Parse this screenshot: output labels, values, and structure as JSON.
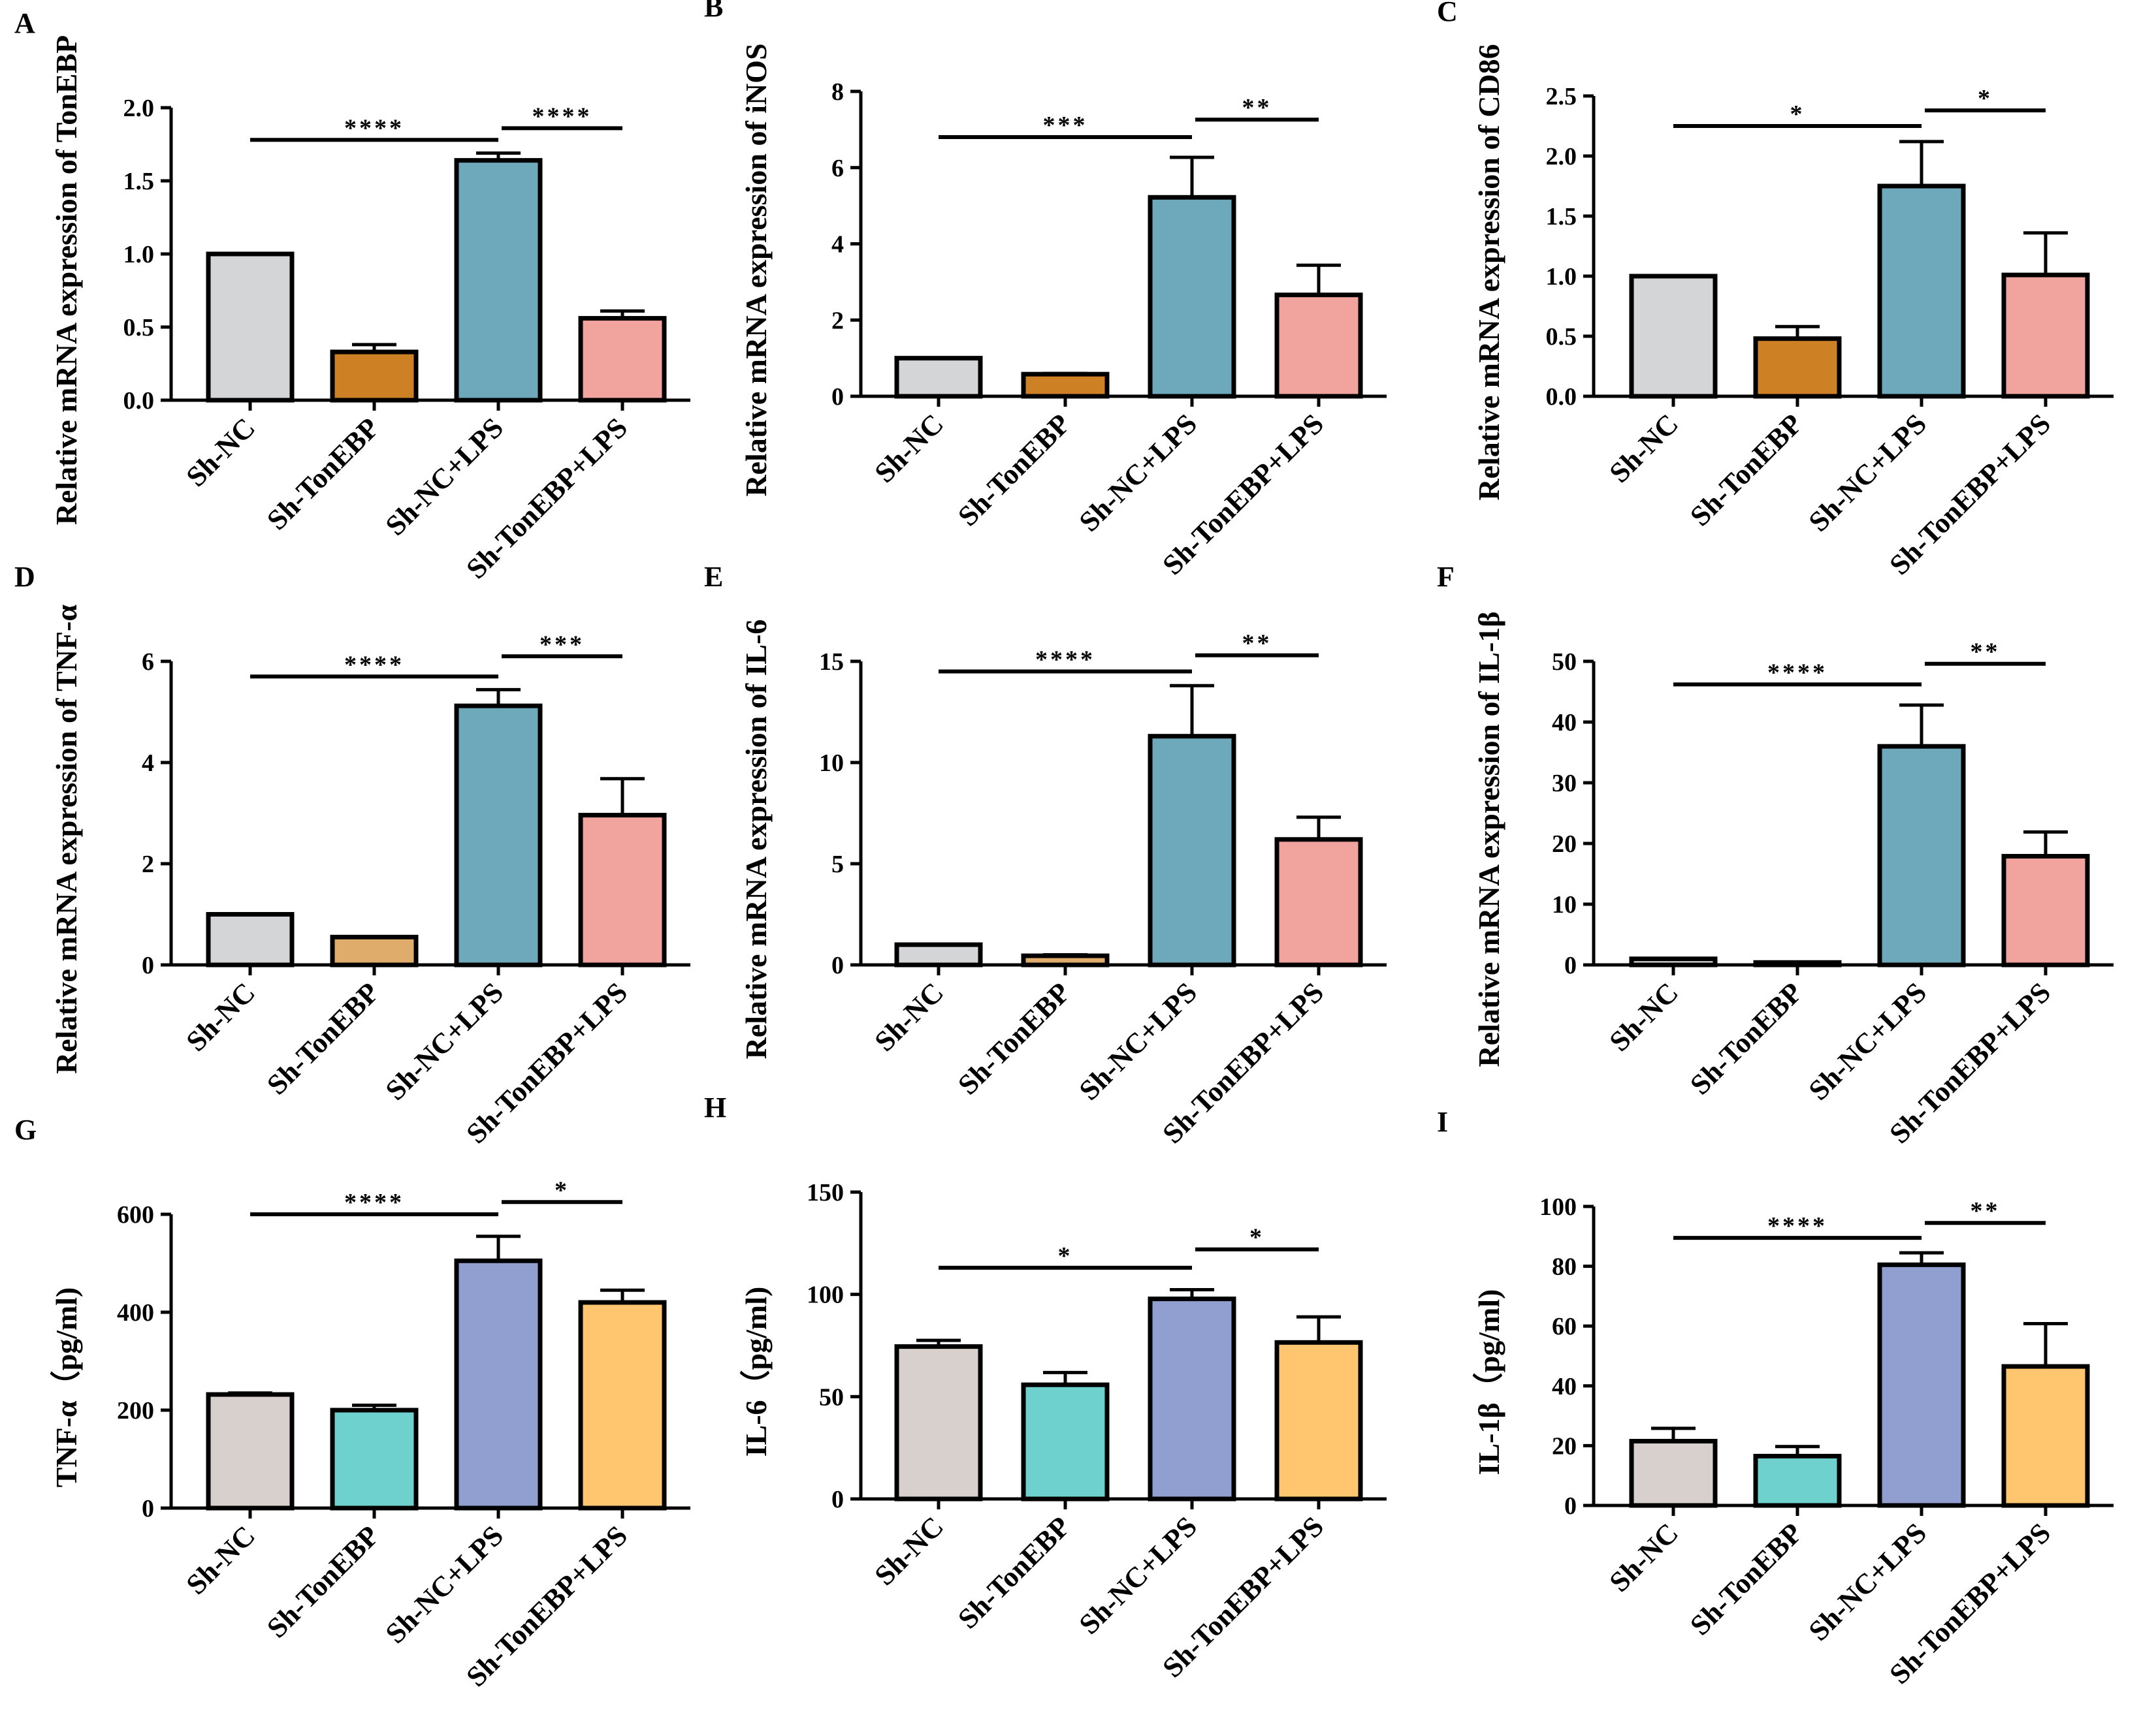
{
  "colors": {
    "A": [
      "#d3d5d6",
      "#cd8124",
      "#6ea9bb",
      "#f1a39d"
    ],
    "D": [
      "#d3d5d6",
      "#e0ac6c",
      "#6ea9bb",
      "#f1a39d"
    ],
    "G": [
      "#d7d0cc",
      "#6fd1cd",
      "#909fcf",
      "#ffc66f"
    ]
  },
  "chart_data": [
    {
      "panel": "A",
      "type": "bar",
      "ylabel": "Relative mRNA expression of TonEBP",
      "categories": [
        "Sh-NC",
        "Sh-TonEBP",
        "Sh-NC+LPS",
        "Sh-TonEBP+LPS"
      ],
      "values": [
        1.0,
        0.33,
        1.64,
        0.56
      ],
      "errors": [
        0,
        0.05,
        0.05,
        0.05
      ],
      "ylim": [
        0,
        2.0
      ],
      "ticks": [
        "0.0",
        "0.5",
        "1.0",
        "1.5",
        "2.0"
      ],
      "significance": [
        {
          "from": 0,
          "to": 2,
          "label": "****",
          "at": 1.78
        },
        {
          "from": 2,
          "to": 3,
          "label": "****",
          "at": 1.86
        }
      ]
    },
    {
      "panel": "B",
      "type": "bar",
      "ylabel": "Relative mRNA expression of iNOS",
      "categories": [
        "Sh-NC",
        "Sh-TonEBP",
        "Sh-NC+LPS",
        "Sh-TonEBP+LPS"
      ],
      "values": [
        1.0,
        0.58,
        5.22,
        2.66
      ],
      "errors": [
        0,
        0.02,
        1.05,
        0.78
      ],
      "ylim": [
        0,
        8
      ],
      "ticks": [
        "0",
        "2",
        "4",
        "6",
        "8"
      ],
      "significance": [
        {
          "from": 0,
          "to": 2,
          "label": "***",
          "at": 6.8
        },
        {
          "from": 2,
          "to": 3,
          "label": "**",
          "at": 7.26
        }
      ]
    },
    {
      "panel": "C",
      "type": "bar",
      "ylabel": "Relative mRNA expression of CD86",
      "categories": [
        "Sh-NC",
        "Sh-TonEBP",
        "Sh-NC+LPS",
        "Sh-TonEBP+LPS"
      ],
      "values": [
        1.0,
        0.48,
        1.75,
        1.01
      ],
      "errors": [
        0,
        0.1,
        0.37,
        0.35
      ],
      "ylim": [
        0,
        2.5
      ],
      "ticks": [
        "0.0",
        "0.5",
        "1.0",
        "1.5",
        "2.0",
        "2.5"
      ],
      "significance": [
        {
          "from": 0,
          "to": 2,
          "label": "*",
          "at": 2.25
        },
        {
          "from": 2,
          "to": 3,
          "label": "*",
          "at": 2.38
        }
      ]
    },
    {
      "panel": "D",
      "type": "bar",
      "ylabel": "Relative mRNA expression of TNF-α",
      "categories": [
        "Sh-NC",
        "Sh-TonEBP",
        "Sh-NC+LPS",
        "Sh-TonEBP+LPS"
      ],
      "values": [
        1.0,
        0.55,
        5.12,
        2.96
      ],
      "errors": [
        0,
        0,
        0.32,
        0.72
      ],
      "ylim": [
        0,
        6
      ],
      "ticks": [
        "0",
        "2",
        "4",
        "6"
      ],
      "significance": [
        {
          "from": 0,
          "to": 2,
          "label": "****",
          "at": 5.7
        },
        {
          "from": 2,
          "to": 3,
          "label": "***",
          "at": 6.1
        }
      ]
    },
    {
      "panel": "E",
      "type": "bar",
      "ylabel": "Relative mRNA expression of IL-6",
      "categories": [
        "Sh-NC",
        "Sh-TonEBP",
        "Sh-NC+LPS",
        "Sh-TonEBP+LPS"
      ],
      "values": [
        1.0,
        0.45,
        11.3,
        6.2
      ],
      "errors": [
        0,
        0.05,
        2.5,
        1.1
      ],
      "ylim": [
        0,
        15
      ],
      "ticks": [
        "0",
        "5",
        "10",
        "15"
      ],
      "significance": [
        {
          "from": 0,
          "to": 2,
          "label": "****",
          "at": 14.5
        },
        {
          "from": 2,
          "to": 3,
          "label": "**",
          "at": 15.3
        }
      ]
    },
    {
      "panel": "F",
      "type": "bar",
      "ylabel": "Relative mRNA expression of IL-1β",
      "categories": [
        "Sh-NC",
        "Sh-TonEBP",
        "Sh-NC+LPS",
        "Sh-TonEBP+LPS"
      ],
      "values": [
        1.0,
        0.4,
        36.0,
        17.9
      ],
      "errors": [
        0,
        0,
        6.8,
        4.0
      ],
      "ylim": [
        0,
        50
      ],
      "ticks": [
        "0",
        "10",
        "20",
        "30",
        "40",
        "50"
      ],
      "significance": [
        {
          "from": 0,
          "to": 2,
          "label": "****",
          "at": 46.2
        },
        {
          "from": 2,
          "to": 3,
          "label": "**",
          "at": 49.6
        }
      ]
    },
    {
      "panel": "G",
      "type": "bar",
      "ylabel": "TNF-α（pg/ml)",
      "categories": [
        "Sh-NC",
        "Sh-TonEBP",
        "Sh-NC+LPS",
        "Sh-TonEBP+LPS"
      ],
      "values": [
        232,
        200,
        505,
        420
      ],
      "errors": [
        3,
        10,
        50,
        25
      ],
      "ylim": [
        0,
        600
      ],
      "ticks": [
        "0",
        "200",
        "400",
        "600"
      ],
      "significance": [
        {
          "from": 0,
          "to": 2,
          "label": "****",
          "at": 600
        },
        {
          "from": 2,
          "to": 3,
          "label": "*",
          "at": 625
        }
      ]
    },
    {
      "panel": "H",
      "type": "bar",
      "ylabel": "IL-6（pg/ml)",
      "categories": [
        "Sh-NC",
        "Sh-TonEBP",
        "Sh-NC+LPS",
        "Sh-TonEBP+LPS"
      ],
      "values": [
        74.5,
        55.8,
        97.8,
        76.5
      ],
      "errors": [
        3,
        6,
        4.5,
        12.5
      ],
      "ylim": [
        0,
        150
      ],
      "ticks": [
        "0",
        "50",
        "100",
        "150"
      ],
      "significance": [
        {
          "from": 0,
          "to": 2,
          "label": "*",
          "at": 113
        },
        {
          "from": 2,
          "to": 3,
          "label": "*",
          "at": 122
        }
      ]
    },
    {
      "panel": "I",
      "type": "bar",
      "ylabel": "IL-1β（pg/ml)",
      "categories": [
        "Sh-NC",
        "Sh-TonEBP",
        "Sh-NC+LPS",
        "Sh-TonEBP+LPS"
      ],
      "values": [
        21.5,
        16.5,
        80.5,
        46.5
      ],
      "errors": [
        4.3,
        3.2,
        4.0,
        14.3
      ],
      "ylim": [
        0,
        100
      ],
      "ticks": [
        "0",
        "20",
        "40",
        "60",
        "80",
        "100"
      ],
      "significance": [
        {
          "from": 0,
          "to": 2,
          "label": "****",
          "at": 89.5
        },
        {
          "from": 2,
          "to": 3,
          "label": "**",
          "at": 94.5
        }
      ]
    }
  ]
}
